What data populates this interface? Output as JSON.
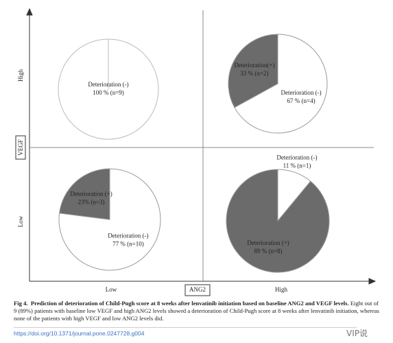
{
  "figure": {
    "y_axis_label": "VEGF",
    "x_axis_label": "ANG2",
    "y_high": "High",
    "y_low": "Low",
    "x_low": "Low",
    "x_high": "High"
  },
  "chart_data": [
    {
      "type": "pie",
      "categories": [
        "Deterioration (-)"
      ],
      "values": [
        100
      ],
      "value_labels": [
        "100 % (n=9)"
      ],
      "colors": [
        "#ffffff"
      ]
    },
    {
      "type": "pie",
      "categories": [
        "Deterioration (-)",
        "Deterioration(+)"
      ],
      "values": [
        67,
        33
      ],
      "value_labels": [
        "67 % (n=4)",
        "33 % (n=2)"
      ],
      "colors": [
        "#ffffff",
        "#6b6b6b"
      ]
    },
    {
      "type": "pie",
      "categories": [
        "Deterioration (-)",
        "Deterioration (+)"
      ],
      "values": [
        77,
        23
      ],
      "value_labels": [
        "77 % (n=10)",
        "23% (n=3)"
      ],
      "colors": [
        "#ffffff",
        "#6b6b6b"
      ]
    },
    {
      "type": "pie",
      "categories": [
        "Deterioration (-)",
        "Deterioration (+)"
      ],
      "values": [
        11,
        89
      ],
      "value_labels": [
        "11 % (n=1)",
        "89 % (n=8)"
      ],
      "colors": [
        "#ffffff",
        "#6b6b6b"
      ]
    }
  ],
  "caption": {
    "label": "Fig 4.",
    "title": "Prediction of deterioration of Child-Pugh score at 8 weeks after lenvatinib initiation based on baseline ANG2 and VEGF levels.",
    "text": "Eight out of 9 (89%) patients with baseline low VEGF and high ANG2 levels showed a deterioration of Child-Pugh score at 8 weeks after lenvatinib initiation, whereas none of the patients with high VEGF and low ANG2 levels did."
  },
  "doi": "https://doi.org/10.1371/journal.pone.0247728.g004",
  "watermark": "VIP说"
}
